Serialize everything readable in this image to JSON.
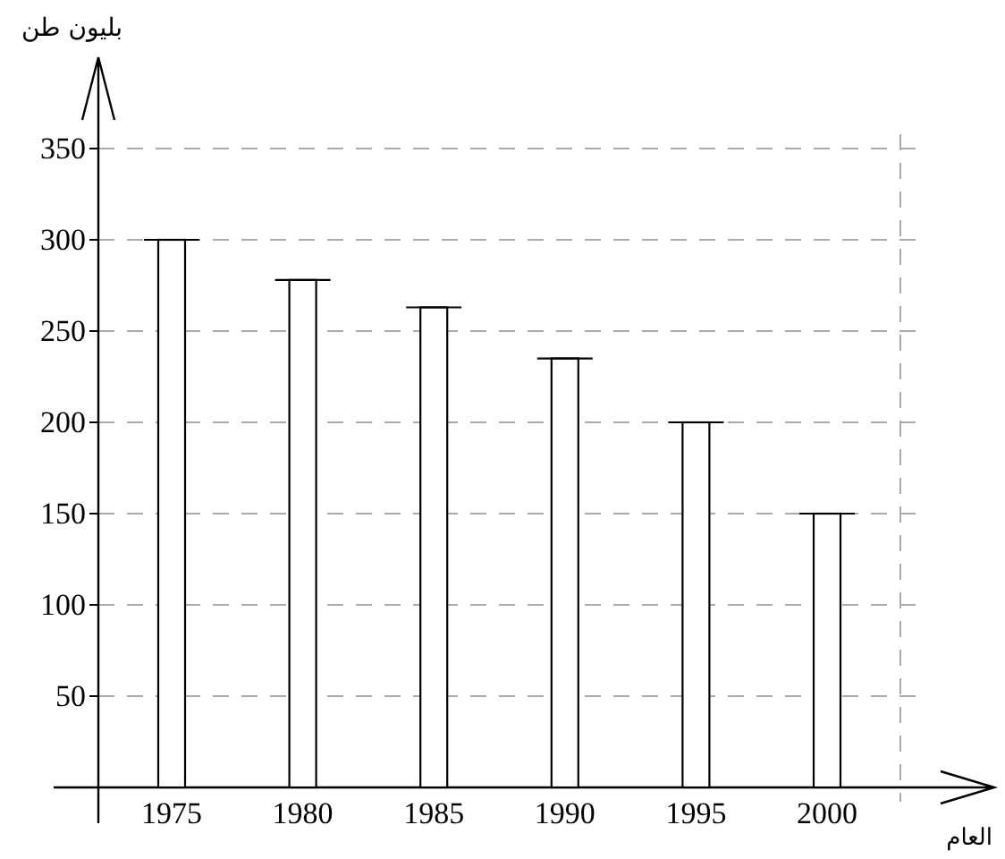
{
  "chart_data": {
    "type": "bar",
    "ylabel": "بليون طن",
    "xlabel": "العام",
    "categories": [
      "1975",
      "1980",
      "1985",
      "1990",
      "1995",
      "2000"
    ],
    "values": [
      300,
      278,
      263,
      235,
      200,
      150
    ],
    "color": "#ffffff",
    "ylim": [
      0,
      400
    ],
    "yticks": [
      50,
      100,
      150,
      200,
      250,
      300,
      350
    ],
    "grid": "y"
  }
}
